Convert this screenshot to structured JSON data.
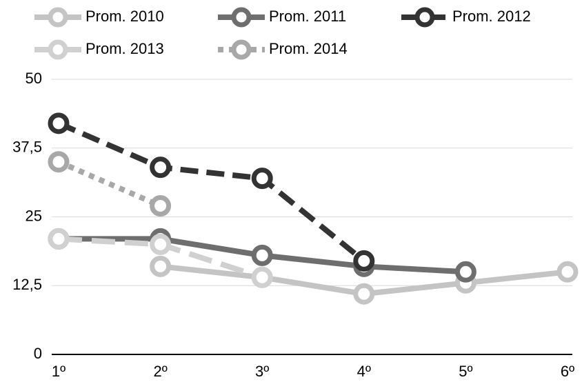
{
  "chart_data": {
    "type": "line",
    "categories": [
      "1º",
      "2º",
      "3º",
      "4º",
      "5º",
      "6º"
    ],
    "series": [
      {
        "name": "Prom. 2010",
        "color": "#c4c4c4",
        "dash": "solid",
        "values": [
          null,
          16,
          14,
          11,
          13,
          15
        ]
      },
      {
        "name": "Prom. 2011",
        "color": "#6e6e6e",
        "dash": "solid",
        "values": [
          21,
          21,
          18,
          16,
          15,
          null
        ]
      },
      {
        "name": "Prom. 2012",
        "color": "#333333",
        "dash": "dash",
        "values": [
          42,
          34,
          32,
          17,
          null,
          null
        ]
      },
      {
        "name": "Prom. 2013",
        "color": "#d0d0d0",
        "dash": "longdash",
        "values": [
          21,
          20,
          14,
          null,
          null,
          null
        ]
      },
      {
        "name": "Prom. 2014",
        "color": "#a8a8a8",
        "dash": "dot",
        "values": [
          35,
          27,
          null,
          null,
          null,
          null
        ]
      }
    ],
    "ylim": [
      0,
      50
    ],
    "yticks": [
      0,
      {
        "value": 12.5,
        "label": "12,5"
      },
      25,
      {
        "value": 37.5,
        "label": "37,5"
      },
      50
    ],
    "grid": true,
    "legend": "top"
  }
}
